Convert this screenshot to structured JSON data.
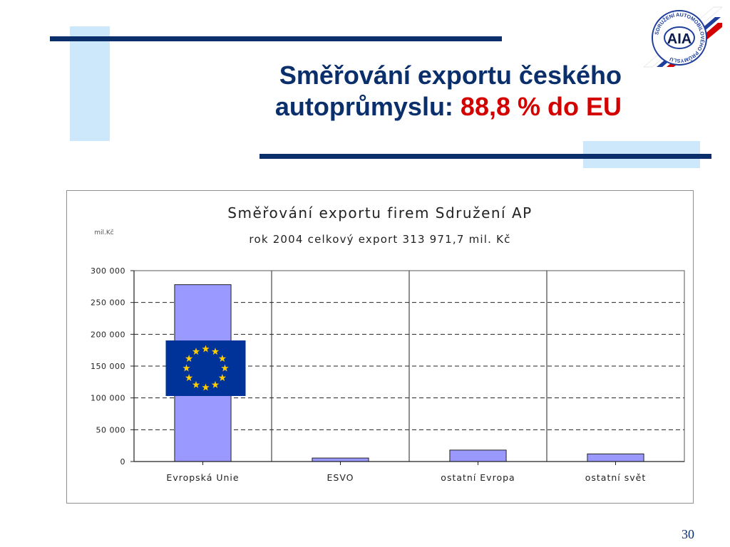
{
  "slide": {
    "title_line1": "Směřování exportu českého",
    "title_line2_prefix": "autoprůmyslu: ",
    "title_line2_highlight": "88,8 % do EU",
    "page_number": "30"
  },
  "logo": {
    "text": "AIA",
    "ring_text": "SDRUŽENÍ AUTOMOBILOVÉHO PRŮMYSLU"
  },
  "colors": {
    "accent_dark": "#0a2f6b",
    "accent_light": "#cce8fa",
    "highlight": "#d40000",
    "bar_fill": "#9999ff",
    "eu_flag_blue": "#003399",
    "eu_star_yellow": "#ffcc00"
  },
  "chart_data": {
    "type": "bar",
    "title": "Směřování exportu firem Sdružení AP",
    "subtitle": "rok 2004 celkový export  313 971,7 mil. Kč",
    "ylabel": "mil.Kč",
    "xlabel": "",
    "categories": [
      "Evropská Unie",
      "ESVO",
      "ostatní Evropa",
      "ostatní svět"
    ],
    "values": [
      278000,
      5500,
      18000,
      12000
    ],
    "ylim": [
      0,
      300000
    ],
    "yticks": [
      0,
      50000,
      100000,
      150000,
      200000,
      250000,
      300000
    ],
    "ytick_labels": [
      "0",
      "50 000",
      "100 000",
      "150 000",
      "200 000",
      "250 000",
      "300 000"
    ],
    "grid": true,
    "legend": "none"
  }
}
